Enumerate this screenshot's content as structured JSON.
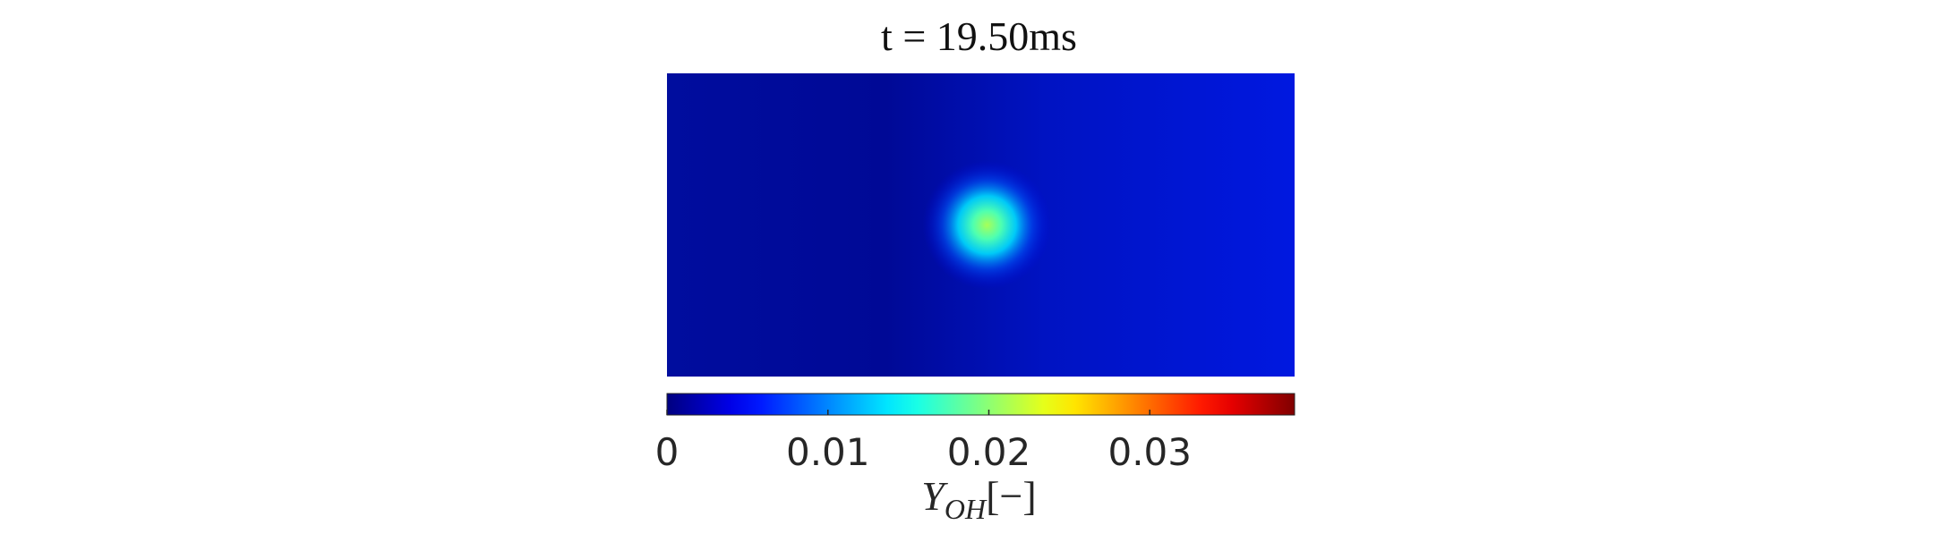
{
  "chart_data": {
    "type": "heatmap",
    "title": "t = 19.50ms",
    "colormap": "jet",
    "color_range": [
      0,
      0.039
    ],
    "background_level": 0.004,
    "peak": {
      "value": 0.021,
      "x_fraction": 0.51,
      "y_fraction": 0.5
    },
    "colorbar": {
      "ticks": [
        0,
        0.01,
        0.02,
        0.03
      ],
      "tick_labels": [
        "0",
        "0.01",
        "0.02",
        "0.03"
      ],
      "label_symbol": "Y",
      "label_subscript": "OH",
      "label_unit": "[−]"
    }
  }
}
